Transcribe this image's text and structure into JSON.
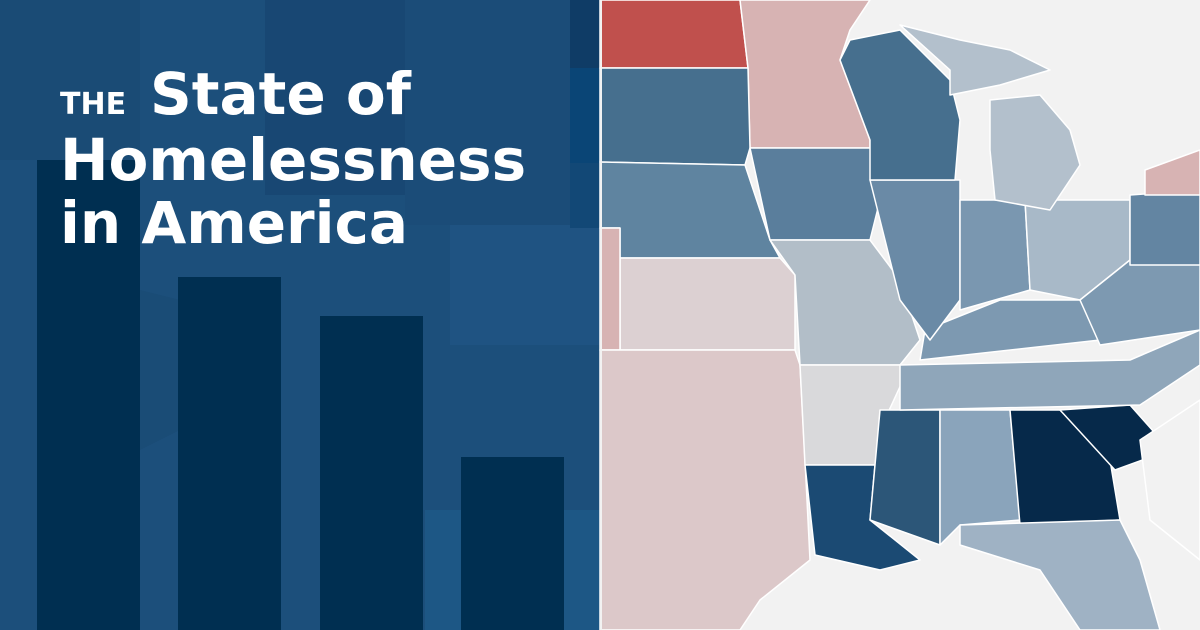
{
  "title": {
    "prefix": "THE",
    "line1": "State of",
    "line2": "Homelessness",
    "line3": "in America"
  }
}
